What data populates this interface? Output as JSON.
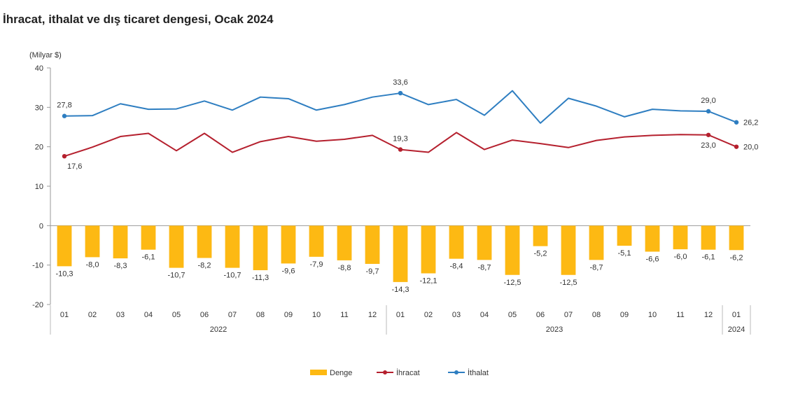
{
  "chart_data": {
    "type": "bar+line",
    "title": "İhracat, ithalat ve dış ticaret dengesi, Ocak 2024",
    "ylabel": "(Milyar $)",
    "ylim": [
      -20,
      40
    ],
    "yticks": [
      -20,
      -10,
      0,
      10,
      20,
      30,
      40
    ],
    "categories": [
      "01",
      "02",
      "03",
      "04",
      "05",
      "06",
      "07",
      "08",
      "09",
      "10",
      "11",
      "12",
      "01",
      "02",
      "03",
      "04",
      "05",
      "06",
      "07",
      "08",
      "09",
      "10",
      "11",
      "12",
      "01"
    ],
    "year_groups": [
      {
        "label": "2022",
        "start": 0,
        "end": 11
      },
      {
        "label": "2023",
        "start": 12,
        "end": 23
      },
      {
        "label": "2024",
        "start": 24,
        "end": 24
      }
    ],
    "series": [
      {
        "name": "Denge",
        "type": "bar",
        "color": "#FDB913",
        "values": [
          -10.3,
          -8.0,
          -8.3,
          -6.1,
          -10.7,
          -8.2,
          -10.7,
          -11.3,
          -9.6,
          -7.9,
          -8.8,
          -9.7,
          -14.3,
          -12.1,
          -8.4,
          -8.7,
          -12.5,
          -5.2,
          -12.5,
          -8.7,
          -5.1,
          -6.6,
          -6.0,
          -6.1,
          -6.2
        ],
        "labels": [
          "-10,3",
          "-8,0",
          "-8,3",
          "-6,1",
          "-10,7",
          "-8,2",
          "-10,7",
          "-11,3",
          "-9,6",
          "-7,9",
          "-8,8",
          "-9,7",
          "-14,3",
          "-12,1",
          "-8,4",
          "-8,7",
          "-12,5",
          "-5,2",
          "-12,5",
          "-8,7",
          "-5,1",
          "-6,6",
          "-6,0",
          "-6,1",
          "-6,2"
        ]
      },
      {
        "name": "İhracat",
        "type": "line",
        "color": "#B5202E",
        "values": [
          17.6,
          19.9,
          22.6,
          23.4,
          19.0,
          23.4,
          18.6,
          21.3,
          22.6,
          21.4,
          21.9,
          22.9,
          19.3,
          18.6,
          23.6,
          19.3,
          21.7,
          20.8,
          19.8,
          21.6,
          22.5,
          22.9,
          23.1,
          23.0,
          20.0
        ],
        "labeled": [
          {
            "index": 0,
            "text": "17,6",
            "pos": "below"
          },
          {
            "index": 12,
            "text": "19,3",
            "pos": "above"
          },
          {
            "index": 23,
            "text": "23,0",
            "pos": "below"
          },
          {
            "index": 24,
            "text": "20,0",
            "pos": "right"
          }
        ]
      },
      {
        "name": "İthalat",
        "type": "line",
        "color": "#2E7EC1",
        "values": [
          27.8,
          27.9,
          30.9,
          29.5,
          29.6,
          31.6,
          29.3,
          32.6,
          32.2,
          29.3,
          30.7,
          32.6,
          33.6,
          30.7,
          32.0,
          28.0,
          34.2,
          26.0,
          32.3,
          30.3,
          27.6,
          29.5,
          29.1,
          29.0,
          26.2
        ],
        "labeled": [
          {
            "index": 0,
            "text": "27,8",
            "pos": "above"
          },
          {
            "index": 12,
            "text": "33,6",
            "pos": "above"
          },
          {
            "index": 23,
            "text": "29,0",
            "pos": "above"
          },
          {
            "index": 24,
            "text": "26,2",
            "pos": "right"
          }
        ]
      }
    ],
    "legend": {
      "position": "bottom-center",
      "items": [
        "Denge",
        "İhracat",
        "İthalat"
      ]
    },
    "grid": false
  }
}
